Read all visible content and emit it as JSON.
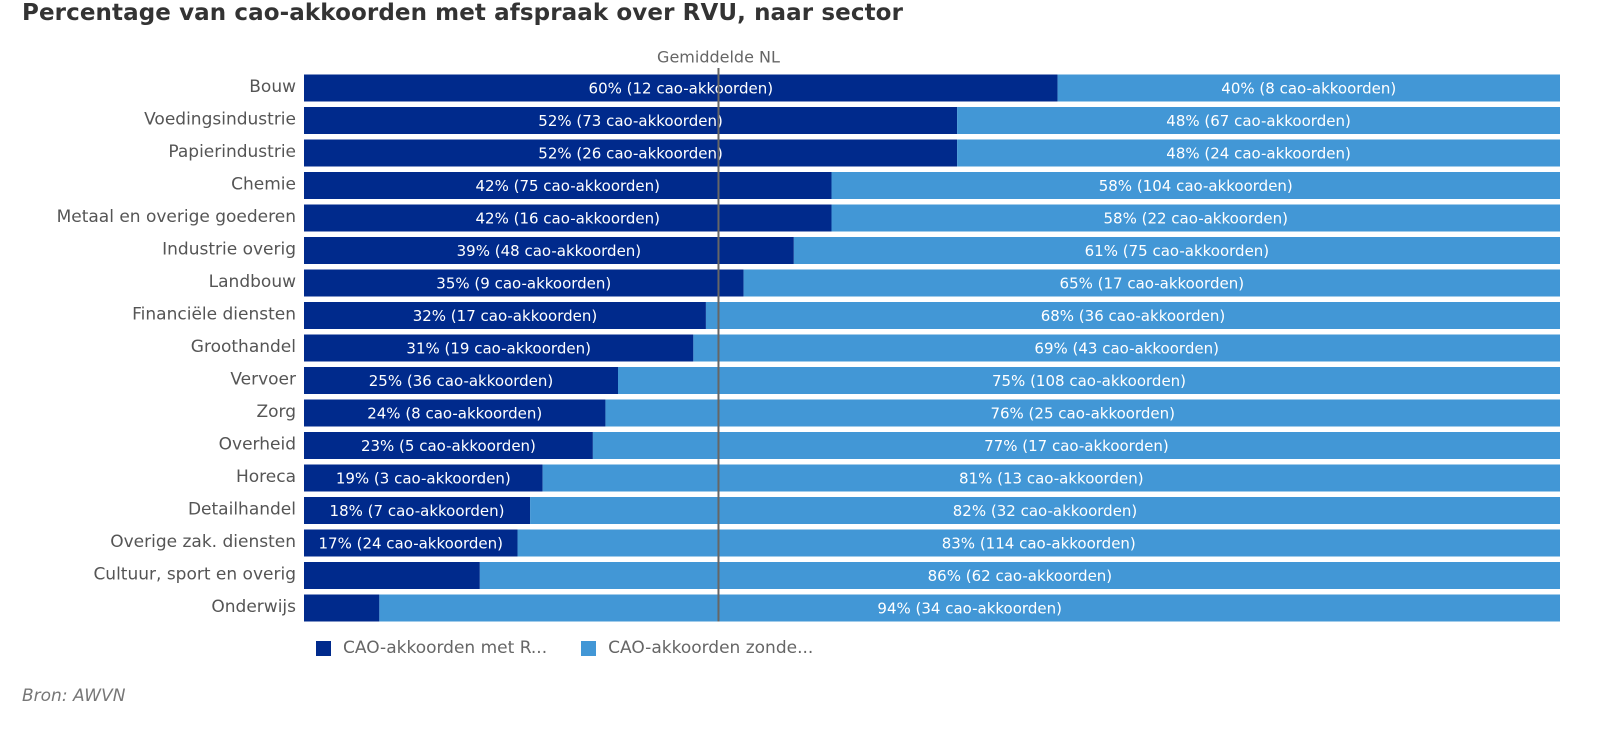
{
  "chart_data": {
    "type": "bar",
    "orientation": "horizontal",
    "stacked": true,
    "title": "Percentage van cao-akkoorden met afspraak over RVU, naar sector",
    "source": "Bron: AWVN",
    "reference_line": {
      "label": "Gemiddelde NL",
      "value": 33
    },
    "xlim": [
      0,
      100
    ],
    "unit": "%",
    "colors": {
      "met": "#002a8c",
      "zonder": "#4297d6",
      "reference": "#666666"
    },
    "categories": [
      "Bouw",
      "Voedingsindustrie",
      "Papierindustrie",
      "Chemie",
      "Metaal en overige goederen",
      "Industrie overig",
      "Landbouw",
      "Financiële diensten",
      "Groothandel",
      "Vervoer",
      "Zorg",
      "Overheid",
      "Horeca",
      "Detailhandel",
      "Overige zak.  diensten",
      "Cultuur, sport en overig",
      "Onderwijs"
    ],
    "series": [
      {
        "name": "CAO-akkoorden met R...",
        "color": "#002a8c",
        "values": [
          60,
          52,
          52,
          42,
          42,
          39,
          35,
          32,
          31,
          25,
          24,
          23,
          19,
          18,
          17,
          14,
          6
        ],
        "labels": [
          "60%  (12 cao-akkoorden)",
          "52%  (73 cao-akkoorden)",
          "52%  (26 cao-akkoorden)",
          "42%  (75 cao-akkoorden)",
          "42%  (16 cao-akkoorden)",
          "39%  (48 cao-akkoorden)",
          "35%  (9 cao-akkoorden)",
          "32%  (17 cao-akkoorden)",
          "31%  (19 cao-akkoorden)",
          "25%  (36 cao-akkoorden)",
          "24%  (8 cao-akkoorden)",
          "23%  (5 cao-akkoorden)",
          "19%  (3 cao-akkoorden)",
          "18%  (7 cao-akkoorden)",
          "17%  (24 cao-akkoorden)",
          "",
          ""
        ]
      },
      {
        "name": "CAO-akkoorden zonde...",
        "color": "#4297d6",
        "values": [
          40,
          48,
          48,
          58,
          58,
          61,
          65,
          68,
          69,
          75,
          76,
          77,
          81,
          82,
          83,
          86,
          94
        ],
        "labels": [
          "40%  (8 cao-akkoorden)",
          "48%  (67 cao-akkoorden)",
          "48%  (24 cao-akkoorden)",
          "58%  (104 cao-akkoorden)",
          "58%  (22 cao-akkoorden)",
          "61%  (75 cao-akkoorden)",
          "65%  (17 cao-akkoorden)",
          "68%  (36 cao-akkoorden)",
          "69%  (43 cao-akkoorden)",
          "75%  (108 cao-akkoorden)",
          "76%  (25 cao-akkoorden)",
          "77%  (17 cao-akkoorden)",
          "81%  (13 cao-akkoorden)",
          "82%  (32 cao-akkoorden)",
          "83%  (114 cao-akkoorden)",
          "86%  (62 cao-akkoorden)",
          "94%  (34 cao-akkoorden)"
        ]
      }
    ],
    "legend_position": "bottom-left"
  }
}
